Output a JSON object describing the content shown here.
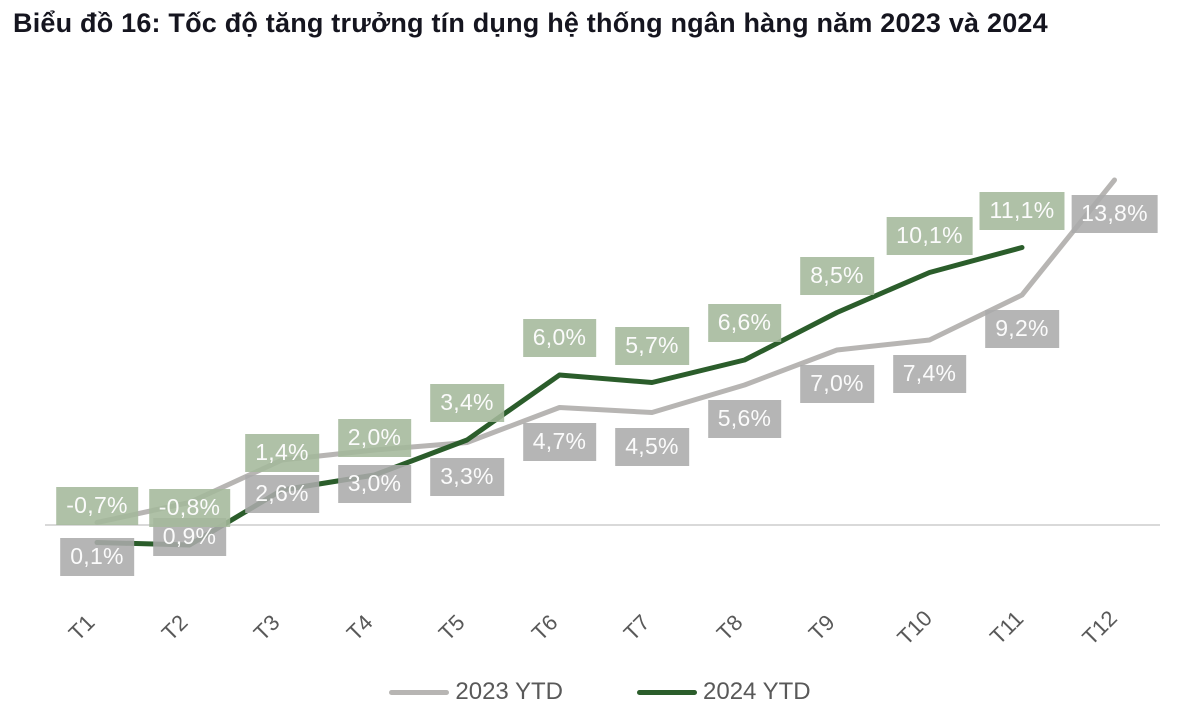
{
  "header": {
    "title": "Biểu đồ 16: Tốc độ tăng trưởng tín dụng hệ thống ngân hàng năm 2023 và 2024",
    "title_color": "#15151f"
  },
  "chart_data": {
    "type": "line",
    "title": "Biểu đồ 16: Tốc độ tăng trưởng tín dụng hệ thống ngân hàng năm 2023 và 2024",
    "categories": [
      "T1",
      "T2",
      "T3",
      "T4",
      "T5",
      "T6",
      "T7",
      "T8",
      "T9",
      "T10",
      "T11",
      "T12"
    ],
    "series": [
      {
        "name": "2023 YTD",
        "color": "#b7b5b3",
        "label_bg": "#ababab",
        "label_text_color": "#fbfbfb",
        "label_position": "below",
        "values": [
          0.1,
          0.9,
          2.6,
          3.0,
          3.3,
          4.7,
          4.5,
          5.6,
          7.0,
          7.4,
          9.2,
          13.8
        ],
        "labels": [
          "0,1%",
          "0,9%",
          "2,6%",
          "3,0%",
          "3,3%",
          "4,7%",
          "4,5%",
          "5,6%",
          "7,0%",
          "7,4%",
          "9,2%",
          "13,8%"
        ]
      },
      {
        "name": "2024 YTD",
        "color": "#2b5d2b",
        "label_bg": "#a4b89b",
        "label_text_color": "#fbfbfb",
        "label_position": "above",
        "values": [
          -0.7,
          -0.8,
          1.4,
          2.0,
          3.4,
          6.0,
          5.7,
          6.6,
          8.5,
          10.1,
          11.1,
          null
        ],
        "labels": [
          "-0,7%",
          "-0,8%",
          "1,4%",
          "2,0%",
          "3,4%",
          "6,0%",
          "5,7%",
          "6,6%",
          "8,5%",
          "10,1%",
          "11,1%",
          null
        ]
      }
    ],
    "axis": {
      "zero_line_color": "#d9d9d9",
      "tick_label_color": "#595959"
    },
    "legend": {
      "position": "bottom",
      "text_color": "#595959"
    },
    "ylim": [
      -2,
      15
    ],
    "grid": false,
    "value_suffix": "%"
  }
}
